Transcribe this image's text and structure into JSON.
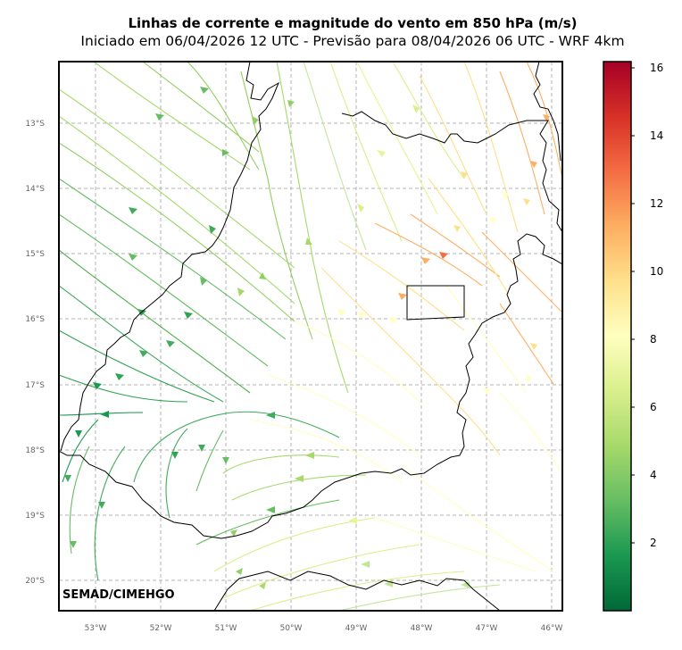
{
  "title": "Linhas de corrente e magnitude do vento em 850 hPa (m/s)",
  "subtitle": "Iniciado em 06/04/2026 12 UTC - Previsão para 08/04/2026 06 UTC - WRF 4km",
  "credit": "SEMAD/CIMEHGO",
  "map": {
    "lon_ticks": [
      "53°W",
      "52°W",
      "51°W",
      "50°W",
      "49°W",
      "48°W",
      "47°W",
      "46°W"
    ],
    "lat_ticks": [
      "13°S",
      "14°S",
      "15°S",
      "16°S",
      "17°S",
      "18°S",
      "19°S",
      "20°S"
    ],
    "grid": true,
    "variable": "wind streamlines and magnitude at 850 hPa",
    "units": "m/s"
  },
  "colorbar": {
    "ticks": [
      "2",
      "4",
      "6",
      "8",
      "10",
      "12",
      "14",
      "16"
    ],
    "min": 0,
    "max": 16.3,
    "colormap": [
      "#006837",
      "#1a9850",
      "#66bd63",
      "#a6d96a",
      "#d9ef8b",
      "#ffffbf",
      "#fee08b",
      "#fdae61",
      "#f46d43",
      "#d73027",
      "#a50026"
    ]
  }
}
